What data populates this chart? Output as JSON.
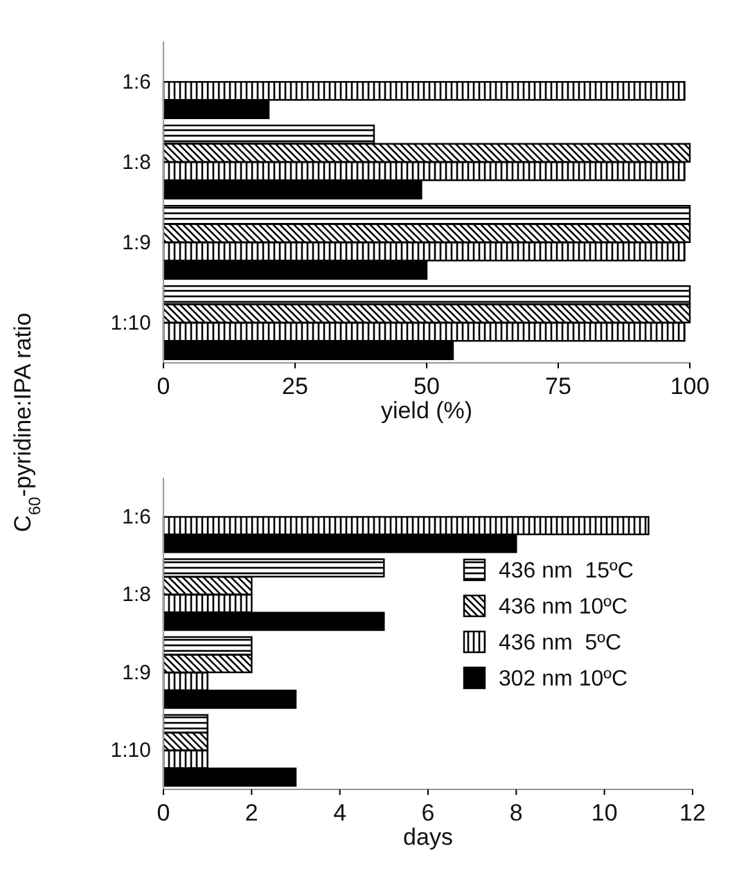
{
  "chart_data": [
    {
      "type": "bar",
      "orientation": "horizontal",
      "ylabel": "C$_{60}$-pyridine:IPA ratio",
      "xlabel": "yield (%)",
      "categories": [
        "1:6",
        "1:8",
        "1:9",
        "1:10"
      ],
      "xlim": [
        0,
        100
      ],
      "xticks": [
        0,
        25,
        50,
        75,
        100
      ],
      "legend": false,
      "series": [
        {
          "color": "#000000",
          "values": [
            null,
            40,
            100,
            100
          ]
        },
        {
          "color": "#000000",
          "values": [
            null,
            100,
            100,
            100
          ]
        },
        {
          "color": "#000000",
          "values": [
            99,
            99,
            99,
            99
          ]
        },
        {
          "color": "#000000",
          "values": [
            20,
            49,
            50,
            55
          ]
        }
      ]
    },
    {
      "type": "bar",
      "orientation": "horizontal",
      "xlabel": "days",
      "categories": [
        "1:6",
        "1:8",
        "1:9",
        "1:10"
      ],
      "xlim": [
        0,
        12
      ],
      "xticks": [
        0,
        2,
        4,
        6,
        8,
        10,
        12
      ],
      "legend": "right",
      "series": [
        {
          "name": "436 nm  15ºC",
          "color": "#000000",
          "values": [
            null,
            5,
            2,
            1
          ]
        },
        {
          "name": "436 nm 10ºC",
          "color": "#000000",
          "values": [
            null,
            2,
            2,
            1
          ]
        },
        {
          "name": "436 nm  5ºC",
          "color": "#000000",
          "values": [
            11,
            2,
            1,
            1
          ]
        },
        {
          "name": "302 nm 10ºC",
          "color": "#000000",
          "values": [
            8,
            5,
            3,
            3
          ]
        }
      ]
    }
  ]
}
